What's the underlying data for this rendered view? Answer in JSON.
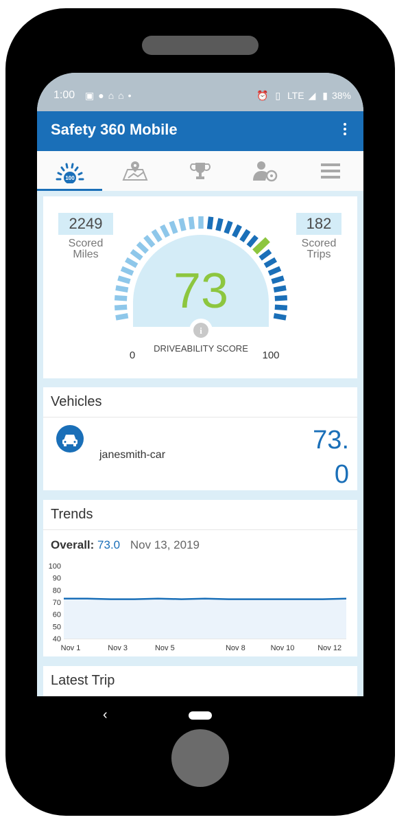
{
  "status_bar": {
    "time": "1:00",
    "left_icons": [
      "w-app-icon",
      "facebook-icon",
      "home-icon",
      "home-icon",
      "dot-icon"
    ],
    "right_icons": [
      "alarm-icon",
      "vibrate-icon",
      "lte-signal-icon",
      "battery-icon"
    ],
    "network": "LTE",
    "battery": "38%"
  },
  "app_bar": {
    "title": "Safety 360 Mobile"
  },
  "tabs": [
    {
      "icon": "score-gauge-icon",
      "active": true
    },
    {
      "icon": "map-icon",
      "active": false
    },
    {
      "icon": "trophy-icon",
      "active": false
    },
    {
      "icon": "driver-icon",
      "active": false
    },
    {
      "icon": "menu-icon",
      "active": false
    }
  ],
  "score": {
    "miles_value": "2249",
    "miles_label_1": "Scored",
    "miles_label_2": "Miles",
    "trips_value": "182",
    "trips_label_1": "Scored",
    "trips_label_2": "Trips",
    "value": "73",
    "gauge_level": 73,
    "min_label": "0",
    "max_label": "100",
    "caption": "DRIVEABILITY SCORE",
    "colors": {
      "score": "#8dc63f",
      "marker": "#8dc63f",
      "ticks_light": "#8ec7ea",
      "ticks_dark": "#1a6fb8"
    }
  },
  "vehicles": {
    "header": "Vehicles",
    "items": [
      {
        "name": "janesmith-car",
        "score_line_1": "73.",
        "score_line_2": "0"
      }
    ]
  },
  "trends": {
    "header": "Trends",
    "overall_label": "Overall:",
    "overall_value": "73.0",
    "date": "Nov 13, 2019"
  },
  "chart_data": {
    "type": "area",
    "x": [
      "Nov 1",
      "Nov 2",
      "Nov 3",
      "Nov 4",
      "Nov 5",
      "Nov 6",
      "Nov 7",
      "Nov 8",
      "Nov 9",
      "Nov 10",
      "Nov 11",
      "Nov 12",
      "Nov 13"
    ],
    "xticks": [
      "Nov 1",
      "Nov 3",
      "Nov 5",
      "Nov 8",
      "Nov 10",
      "Nov 12"
    ],
    "values": [
      73,
      73,
      72.5,
      72.5,
      73,
      72.5,
      73,
      72.5,
      72.5,
      72.5,
      72.5,
      72.5,
      73
    ],
    "yticks": [
      "100",
      "90",
      "80",
      "70",
      "60",
      "50",
      "40"
    ],
    "ylim": [
      40,
      100
    ],
    "line_color": "#1a6fb8",
    "fill_color": "#ebf3fb",
    "grid": false
  },
  "latest_trip": {
    "header": "Latest Trip"
  }
}
